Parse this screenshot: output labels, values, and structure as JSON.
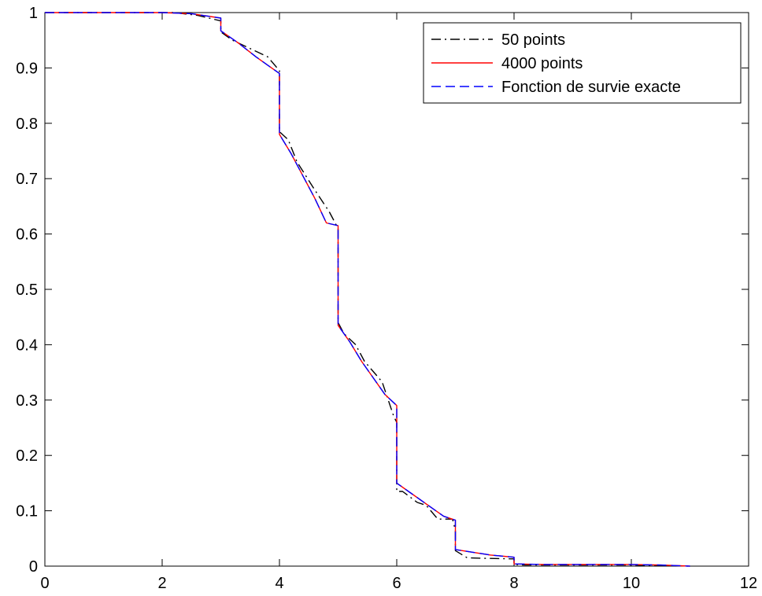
{
  "chart_data": {
    "type": "line",
    "title": "",
    "xlabel": "",
    "ylabel": "",
    "xlim": [
      0,
      12
    ],
    "ylim": [
      0,
      1
    ],
    "xticks": [
      0,
      2,
      4,
      6,
      8,
      10,
      12
    ],
    "yticks": [
      0,
      0.1,
      0.2,
      0.3,
      0.4,
      0.5,
      0.6,
      0.7,
      0.8,
      0.9,
      1
    ],
    "xtick_labels": [
      "0",
      "2",
      "4",
      "6",
      "8",
      "10",
      "12"
    ],
    "ytick_labels": [
      "0",
      "0.1",
      "0.2",
      "0.3",
      "0.4",
      "0.5",
      "0.6",
      "0.7",
      "0.8",
      "0.9",
      "1"
    ],
    "grid": false,
    "legend_position": "top-right",
    "series": [
      {
        "name": "50 points",
        "color": "#000000",
        "style": "dash-dot",
        "x": [
          0,
          2,
          2.2,
          2.6,
          3,
          3,
          3.2,
          3.5,
          3.8,
          4,
          4,
          4.15,
          4.3,
          4.6,
          4.85,
          5,
          5,
          5.1,
          5.3,
          5.45,
          5.75,
          5.95,
          6,
          6,
          6.1,
          6.35,
          6.5,
          6.7,
          6.95,
          7,
          7,
          7.2,
          7.5,
          8,
          8,
          8.2,
          9,
          10,
          11
        ],
        "y": [
          1,
          1,
          1,
          0.995,
          0.985,
          0.965,
          0.95,
          0.935,
          0.92,
          0.895,
          0.785,
          0.77,
          0.73,
          0.68,
          0.64,
          0.61,
          0.44,
          0.42,
          0.4,
          0.37,
          0.333,
          0.27,
          0.26,
          0.135,
          0.135,
          0.115,
          0.11,
          0.085,
          0.085,
          0.065,
          0.028,
          0.015,
          0.014,
          0.013,
          0.003,
          0.002,
          0.002,
          0.002,
          0
        ]
      },
      {
        "name": "4000 points",
        "color": "#ff0000",
        "style": "solid",
        "x": [
          0,
          2,
          2.5,
          3,
          3,
          3.3,
          3.6,
          3.8,
          4,
          4,
          4.2,
          4.4,
          4.6,
          4.8,
          5,
          5,
          5.2,
          5.4,
          5.6,
          5.8,
          6,
          6,
          6.2,
          6.4,
          6.6,
          6.8,
          7,
          7,
          7.3,
          7.6,
          8,
          8,
          8.5,
          9,
          9.5,
          10,
          10.5,
          11
        ],
        "y": [
          1,
          1,
          0.998,
          0.99,
          0.967,
          0.945,
          0.92,
          0.905,
          0.89,
          0.78,
          0.745,
          0.705,
          0.665,
          0.62,
          0.615,
          0.435,
          0.405,
          0.37,
          0.34,
          0.31,
          0.29,
          0.15,
          0.135,
          0.12,
          0.105,
          0.09,
          0.083,
          0.03,
          0.025,
          0.02,
          0.016,
          0.004,
          0.003,
          0.003,
          0.003,
          0.003,
          0.002,
          0
        ]
      },
      {
        "name": "Fonction de survie exacte",
        "color": "#0000ff",
        "style": "dashed",
        "x": [
          0,
          2,
          2.5,
          3,
          3,
          3.3,
          3.6,
          3.8,
          4,
          4,
          4.2,
          4.4,
          4.6,
          4.8,
          5,
          5,
          5.2,
          5.4,
          5.6,
          5.8,
          6,
          6,
          6.2,
          6.4,
          6.6,
          6.8,
          7,
          7,
          7.3,
          7.6,
          8,
          8,
          8.5,
          9,
          9.5,
          10,
          10.5,
          11
        ],
        "y": [
          1,
          1,
          0.998,
          0.99,
          0.967,
          0.945,
          0.92,
          0.905,
          0.89,
          0.78,
          0.745,
          0.705,
          0.665,
          0.62,
          0.615,
          0.435,
          0.405,
          0.37,
          0.34,
          0.31,
          0.29,
          0.15,
          0.135,
          0.12,
          0.105,
          0.09,
          0.083,
          0.03,
          0.025,
          0.02,
          0.016,
          0.004,
          0.003,
          0.003,
          0.003,
          0.003,
          0.002,
          0
        ]
      }
    ]
  }
}
